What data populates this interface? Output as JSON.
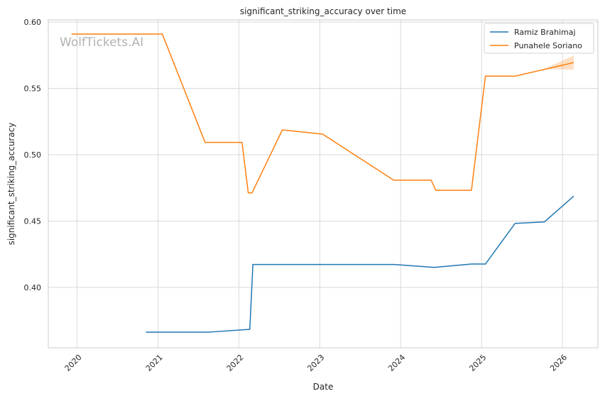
{
  "chart_data": {
    "type": "line",
    "title": "significant_striking_accuracy over time",
    "xlabel": "Date",
    "ylabel": "significant_striking_accuracy",
    "watermark": "WolfTickets.AI",
    "x_ticks": [
      "2020",
      "2021",
      "2022",
      "2023",
      "2024",
      "2025",
      "2026"
    ],
    "y_ticks": [
      "0.40",
      "0.45",
      "0.50",
      "0.55",
      "0.60"
    ],
    "xlim": [
      "2019-08-24",
      "2026-06-10"
    ],
    "ylim": [
      0.3545,
      0.6016
    ],
    "grid": true,
    "legend_position": "top-right",
    "series": [
      {
        "name": "Ramiz Brahimaj",
        "color": "#1f77b4",
        "points": [
          [
            "2020-11-07",
            0.3663
          ],
          [
            "2021-08-21",
            0.3663
          ],
          [
            "2022-02-19",
            0.3684
          ],
          [
            "2022-03-05",
            0.4173
          ],
          [
            "2023-12-01",
            0.4173
          ],
          [
            "2024-06-01",
            0.4151
          ],
          [
            "2024-11-16",
            0.4176
          ],
          [
            "2025-01-18",
            0.4176
          ],
          [
            "2025-06-01",
            0.4482
          ],
          [
            "2025-10-11",
            0.4493
          ],
          [
            "2026-02-21",
            0.4688
          ]
        ]
      },
      {
        "name": "Punahele Soriano",
        "color": "#ff7f0e",
        "points": [
          [
            "2019-12-07",
            0.5909
          ],
          [
            "2021-01-20",
            0.5909
          ],
          [
            "2021-08-01",
            0.5093
          ],
          [
            "2022-01-15",
            0.5093
          ],
          [
            "2022-02-12",
            0.4712
          ],
          [
            "2022-03-01",
            0.4712
          ],
          [
            "2022-07-16",
            0.5187
          ],
          [
            "2023-01-14",
            0.5155
          ],
          [
            "2023-12-01",
            0.4808
          ],
          [
            "2024-05-18",
            0.4808
          ],
          [
            "2024-06-08",
            0.4732
          ],
          [
            "2024-11-16",
            0.4732
          ],
          [
            "2025-01-18",
            0.5592
          ],
          [
            "2025-06-01",
            0.5592
          ],
          [
            "2026-02-21",
            0.5694
          ]
        ],
        "band": {
          "upper": [
            [
              "2025-10-11",
              0.5646
            ],
            [
              "2026-02-21",
              0.5748
            ]
          ],
          "lower": [
            [
              "2025-10-11",
              0.5646
            ],
            [
              "2026-02-21",
              0.564
            ]
          ]
        }
      }
    ]
  }
}
